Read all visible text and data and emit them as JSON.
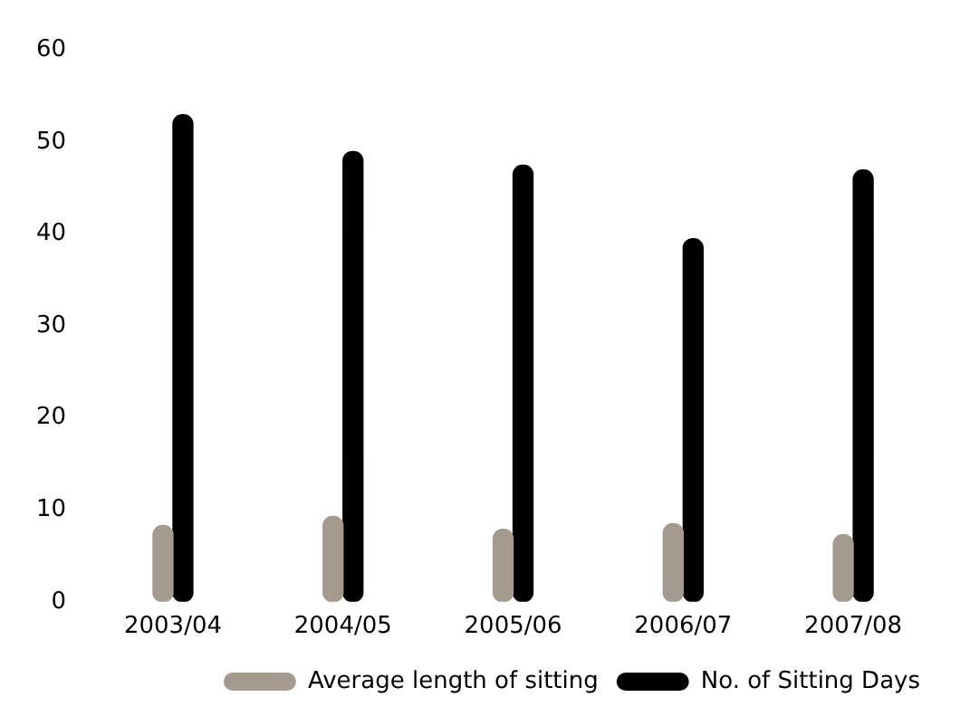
{
  "chart_data": {
    "type": "bar",
    "categories": [
      "2003/04",
      "2004/05",
      "2005/06",
      "2006/07",
      "2007/08"
    ],
    "series": [
      {
        "name": "Average length of sitting",
        "color": "#a59a8e",
        "values": [
          8.3,
          9.3,
          7.9,
          8.5,
          7.3
        ]
      },
      {
        "name": "No. of Sitting Days",
        "color": "#000000",
        "values": [
          53,
          49,
          47.5,
          39.5,
          47
        ]
      }
    ],
    "ylim": [
      0,
      60
    ],
    "yticks": [
      0,
      10,
      20,
      30,
      40,
      50,
      60
    ],
    "grid": false,
    "legend": "bottom right"
  }
}
